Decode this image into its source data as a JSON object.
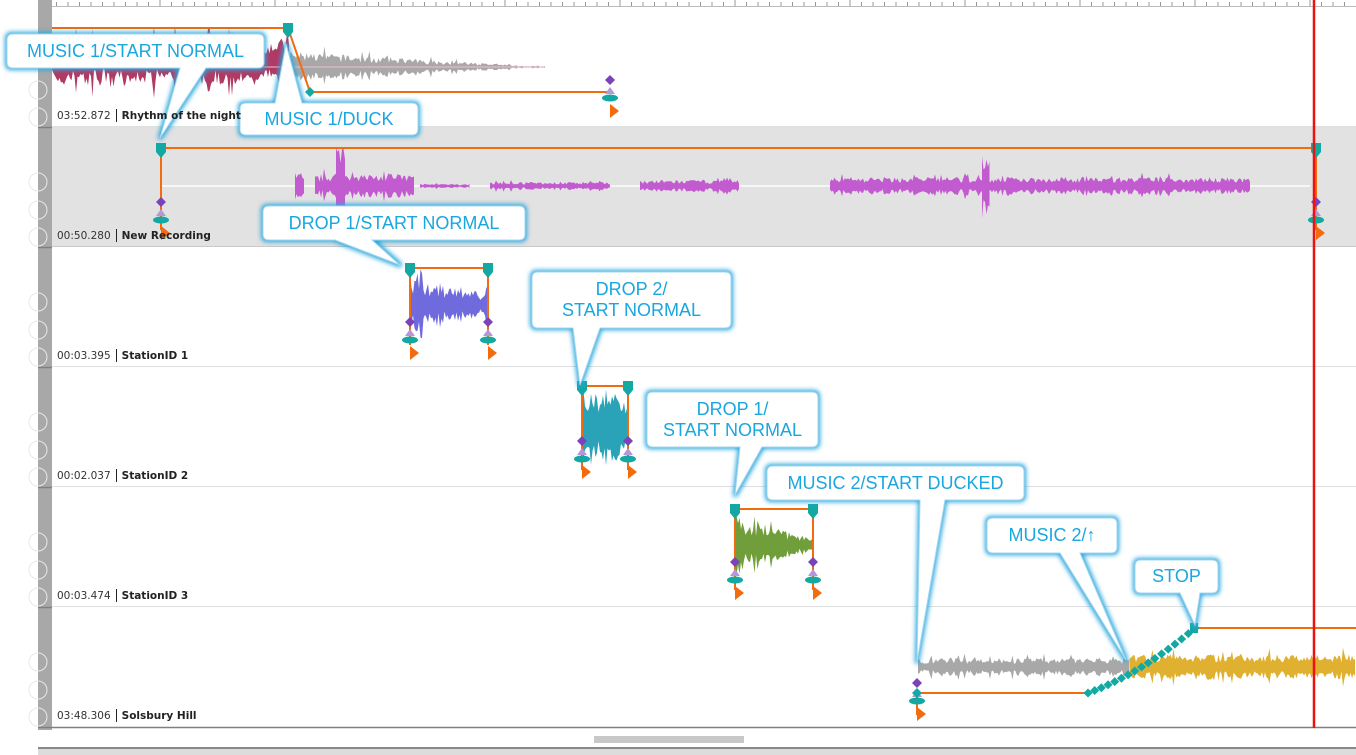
{
  "colors": {
    "envelope": "#f26b0f",
    "marker_teal": "#14a8a2",
    "marker_purple": "#7a44b8",
    "marker_lilac": "#b796d8",
    "playhead": "#ee1111",
    "callout_text": "#1aa6df",
    "callout_glow": "#2aa7de"
  },
  "tracks": [
    {
      "time": "03:52.872",
      "name": "Rhythm of the night",
      "wave_colors": [
        "#b03a64",
        "#a8a8a8"
      ]
    },
    {
      "time": "00:50.280",
      "name": "New Recording",
      "wave_colors": [
        "#c35bd0"
      ]
    },
    {
      "time": "00:03.395",
      "name": "StationID 1",
      "wave_colors": [
        "#6f6bdc"
      ]
    },
    {
      "time": "00:02.037",
      "name": "StationID 2",
      "wave_colors": [
        "#2aa3b8"
      ]
    },
    {
      "time": "00:03.474",
      "name": "StationID 3",
      "wave_colors": [
        "#6f9e3a"
      ]
    },
    {
      "time": "03:48.306",
      "name": "Solsbury Hill",
      "wave_colors": [
        "#a8a8a8",
        "#e0b030"
      ]
    }
  ],
  "callouts": [
    {
      "text": "MUSIC 1/START NORMAL"
    },
    {
      "text": "MUSIC 1/DUCK"
    },
    {
      "text": "DROP 1/START NORMAL"
    },
    {
      "text": "DROP 2/\nSTART NORMAL"
    },
    {
      "text": "DROP 1/\nSTART NORMAL"
    },
    {
      "text": "MUSIC 2/START DUCKED"
    },
    {
      "text": "MUSIC 2/↑"
    },
    {
      "text": "STOP"
    }
  ]
}
